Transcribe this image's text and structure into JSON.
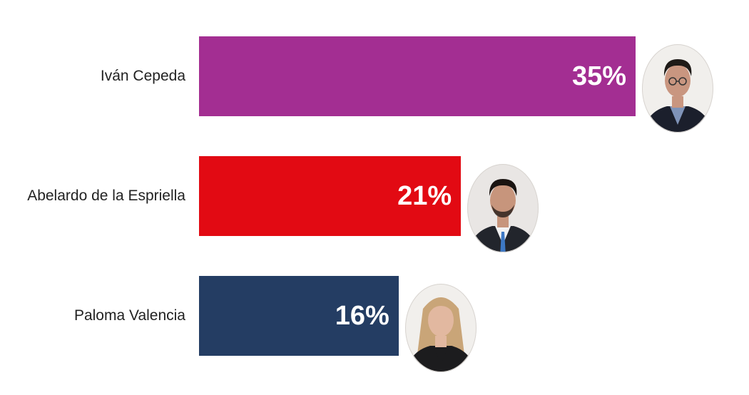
{
  "chart_data": {
    "type": "bar",
    "orientation": "horizontal",
    "categories": [
      "Iván Cepeda",
      "Abelardo de la Espriella",
      "Paloma Valencia"
    ],
    "values": [
      35,
      21,
      16
    ],
    "value_labels": [
      "35%",
      "21%",
      "16%"
    ],
    "colors": [
      "#a32e92",
      "#e20a13",
      "#243d63"
    ],
    "title": "",
    "xlabel": "",
    "ylabel": "",
    "xlim": [
      0,
      40
    ],
    "grid": false,
    "legend": "none"
  },
  "avatars": [
    {
      "icon": "portrait-man-glasses-icon",
      "hair": "#1e1a17",
      "skin": "#c99680",
      "shirt": "#7f93b8",
      "jacket": "#1b1f2c"
    },
    {
      "icon": "portrait-man-bearded-icon",
      "hair": "#1a1411",
      "skin": "#c7957c",
      "shirt": "#f2f2f2",
      "jacket": "#22252c",
      "tie": "#3d78c4"
    },
    {
      "icon": "portrait-woman-blonde-icon",
      "hair": "#c9a578",
      "skin": "#e2b8a0",
      "shirt": "#1c1c1e",
      "jacket": "#1c1c1e"
    }
  ]
}
